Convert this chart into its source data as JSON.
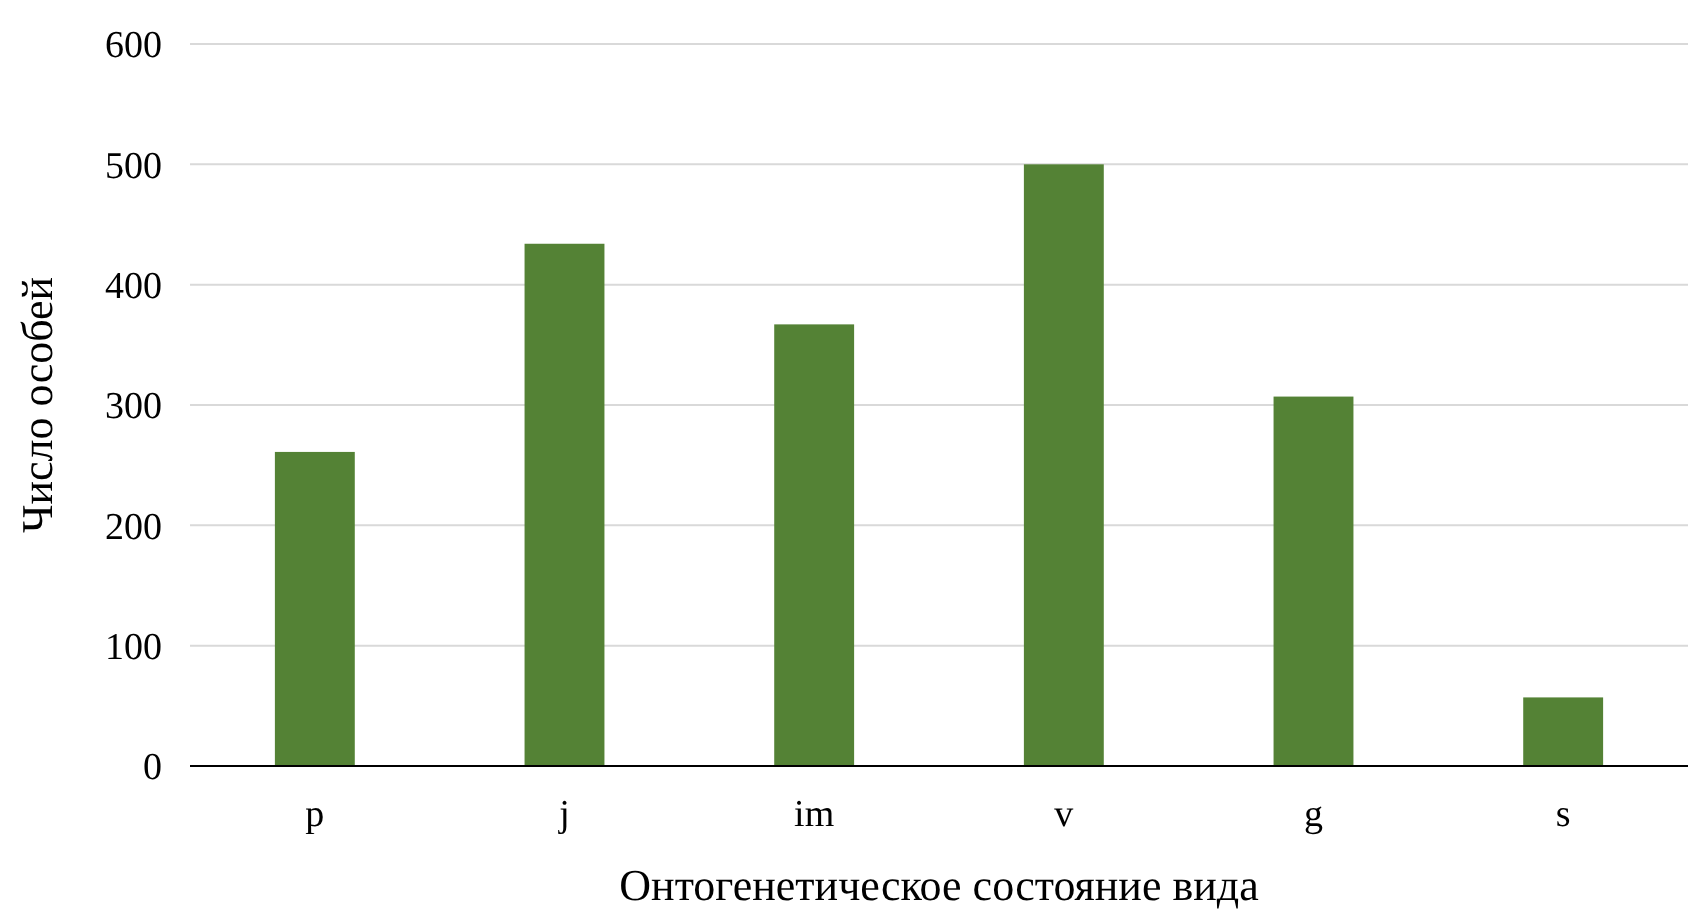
{
  "chart_data": {
    "type": "bar",
    "xlabel": "Онтогенетическое состояние вида",
    "ylabel": "Число особей",
    "categories": [
      "p",
      "j",
      "im",
      "v",
      "g",
      "s"
    ],
    "values": [
      261,
      434,
      367,
      500,
      307,
      57
    ],
    "color": "#548235",
    "ylim": [
      0,
      600
    ],
    "yticks": [
      0,
      100,
      200,
      300,
      400,
      500,
      600
    ],
    "grid": "y"
  }
}
